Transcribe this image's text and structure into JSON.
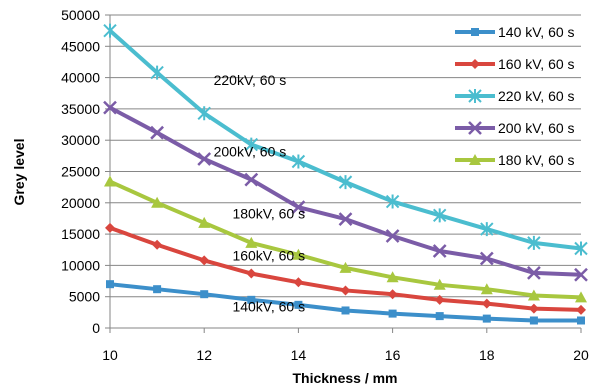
{
  "chart_data": {
    "type": "line",
    "xlabel": "Thickness / mm",
    "ylabel": "Grey level",
    "x": [
      10,
      11,
      12,
      13,
      14,
      15,
      16,
      17,
      18,
      19,
      20
    ],
    "xlim": [
      10,
      20
    ],
    "ylim": [
      0,
      50000
    ],
    "xticks": [
      "10",
      "12",
      "14",
      "16",
      "18",
      "20"
    ],
    "yticks": [
      "0",
      "5000",
      "10000",
      "15000",
      "20000",
      "25000",
      "30000",
      "35000",
      "40000",
      "45000",
      "50000"
    ],
    "grid": "horizontal",
    "legend_position": "right",
    "series": [
      {
        "name": "140 kV, 60 s",
        "color": "#3c8fca",
        "marker": "square",
        "values": [
          7000,
          6200,
          5400,
          4500,
          3700,
          2800,
          2300,
          1900,
          1500,
          1200,
          1200
        ]
      },
      {
        "name": "160 kV, 60 s",
        "color": "#d9463e",
        "marker": "diamond",
        "values": [
          16000,
          13300,
          10800,
          8700,
          7300,
          6000,
          5400,
          4500,
          3900,
          3100,
          2900
        ]
      },
      {
        "name": "220 kV, 60 s",
        "color": "#4bbdcf",
        "marker": "asterisk",
        "values": [
          47500,
          40800,
          34300,
          29300,
          26600,
          23300,
          20200,
          18000,
          15800,
          13600,
          12700
        ]
      },
      {
        "name": "200 kV, 60 s",
        "color": "#7b5ca7",
        "marker": "x",
        "values": [
          35200,
          31200,
          27000,
          23700,
          19300,
          17400,
          14700,
          12300,
          11100,
          8800,
          8500
        ]
      },
      {
        "name": "180 kV, 60 s",
        "color": "#a8c73f",
        "marker": "triangle",
        "values": [
          23400,
          20000,
          16800,
          13600,
          11700,
          9600,
          8100,
          6900,
          6200,
          5200,
          4900
        ]
      }
    ],
    "annotations": [
      {
        "text": "220kV, 60 s",
        "x": 12.2,
        "y": 38800
      },
      {
        "text": "200kV, 60 s",
        "x": 12.2,
        "y": 27400
      },
      {
        "text": "180kV, 60 s",
        "x": 12.6,
        "y": 17500
      },
      {
        "text": "160kV, 60 s",
        "x": 12.6,
        "y": 10800
      },
      {
        "text": "140kV, 60 s",
        "x": 12.6,
        "y": 2600
      }
    ]
  }
}
